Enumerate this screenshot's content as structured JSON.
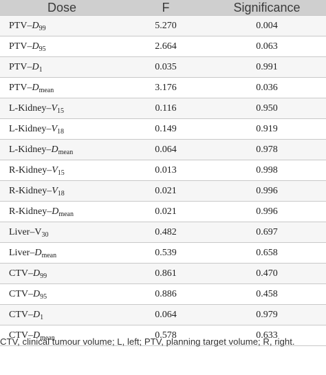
{
  "table": {
    "headers": [
      "Dose",
      "F",
      "Significance"
    ],
    "rows": [
      {
        "prefix": "PTV–",
        "var": "D",
        "sub": "99",
        "f": "5.270",
        "sig": "0.004"
      },
      {
        "prefix": "PTV–",
        "var": "D",
        "sub": "95",
        "f": "2.664",
        "sig": "0.063"
      },
      {
        "prefix": "PTV–",
        "var": "D",
        "sub": "1",
        "f": "0.035",
        "sig": "0.991"
      },
      {
        "prefix": "PTV–",
        "var": "D",
        "sub": "mean",
        "f": "3.176",
        "sig": "0.036"
      },
      {
        "prefix": "L-Kidney–",
        "var": "V",
        "sub": "15",
        "f": "0.116",
        "sig": "0.950"
      },
      {
        "prefix": "L-Kidney–",
        "var": "V",
        "sub": "18",
        "f": "0.149",
        "sig": "0.919"
      },
      {
        "prefix": "L-Kidney–",
        "var": "D",
        "sub": "mean",
        "f": "0.064",
        "sig": "0.978"
      },
      {
        "prefix": "R-Kidney–",
        "var": "V",
        "sub": "15",
        "f": "0.013",
        "sig": "0.998"
      },
      {
        "prefix": "R-Kidney–",
        "var": "V",
        "sub": "18",
        "f": "0.021",
        "sig": "0.996"
      },
      {
        "prefix": "R-Kidney–",
        "var": "D",
        "sub": "mean",
        "f": "0.021",
        "sig": "0.996"
      },
      {
        "prefix": "Liver–V",
        "var": "",
        "sub": "30",
        "f": "0.482",
        "sig": "0.697"
      },
      {
        "prefix": "Liver–",
        "var": "D",
        "sub": "mean",
        "f": "0.539",
        "sig": "0.658"
      },
      {
        "prefix": "CTV–",
        "var": "D",
        "sub": "99",
        "f": "0.861",
        "sig": "0.470"
      },
      {
        "prefix": "CTV–",
        "var": "D",
        "sub": "95",
        "f": "0.886",
        "sig": "0.458"
      },
      {
        "prefix": "CTV–",
        "var": "D",
        "sub": "1",
        "f": "0.064",
        "sig": "0.979"
      },
      {
        "prefix": "CTV–",
        "var": "D",
        "sub": "mean",
        "f": "0.578",
        "sig": "0.633"
      }
    ]
  },
  "footnote": "CTV, clinical tumour volume; L, left; PTV, planning target volume; R, right."
}
